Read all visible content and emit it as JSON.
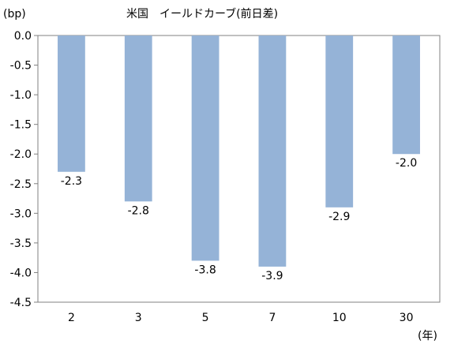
{
  "chart_data": {
    "type": "bar",
    "title": "米国　イールドカーブ(前日差)",
    "ylabel": "(bp)",
    "xlabel": "(年)",
    "categories": [
      "2",
      "3",
      "5",
      "7",
      "10",
      "30"
    ],
    "values": [
      -2.3,
      -2.8,
      -3.8,
      -3.9,
      -2.9,
      -2.0
    ],
    "data_labels": [
      "-2.3",
      "-2.8",
      "-3.8",
      "-3.9",
      "-2.9",
      "-2.0"
    ],
    "ylim": [
      -4.5,
      0.0
    ],
    "yticks": [
      "0.0",
      "-0.5",
      "-1.0",
      "-1.5",
      "-2.0",
      "-2.5",
      "-3.0",
      "-3.5",
      "-4.0",
      "-4.5"
    ],
    "grid": false,
    "bar_color": "#95b3d7",
    "axis_color": "#808080"
  }
}
